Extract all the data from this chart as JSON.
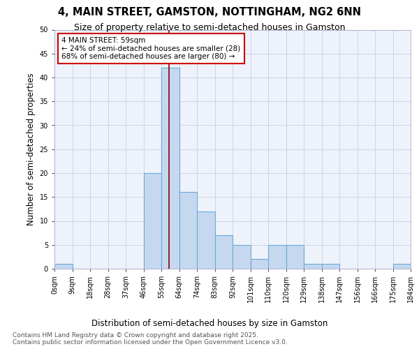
{
  "title": "4, MAIN STREET, GAMSTON, NOTTINGHAM, NG2 6NN",
  "subtitle": "Size of property relative to semi-detached houses in Gamston",
  "xlabel": "Distribution of semi-detached houses by size in Gamston",
  "ylabel": "Number of semi-detached properties",
  "bar_color": "#c5d8f0",
  "bar_edge_color": "#6aaad4",
  "background_color": "#eef2fb",
  "bar_heights": [
    1,
    0,
    0,
    0,
    0,
    20,
    42,
    16,
    12,
    7,
    5,
    2,
    5,
    5,
    1,
    1,
    0,
    0,
    0,
    1
  ],
  "bin_labels": [
    "0sqm",
    "9sqm",
    "18sqm",
    "28sqm",
    "37sqm",
    "46sqm",
    "55sqm",
    "64sqm",
    "74sqm",
    "83sqm",
    "92sqm",
    "101sqm",
    "110sqm",
    "120sqm",
    "129sqm",
    "138sqm",
    "147sqm",
    "156sqm",
    "166sqm",
    "175sqm",
    "184sqm"
  ],
  "vline_bin": 6,
  "annotation_title": "4 MAIN STREET: 59sqm",
  "annotation_line1": "← 24% of semi-detached houses are smaller (28)",
  "annotation_line2": "68% of semi-detached houses are larger (80) →",
  "annotation_box_color": "#ffffff",
  "annotation_box_edge": "#cc0000",
  "vline_color": "#8b0000",
  "ylim": [
    0,
    50
  ],
  "yticks": [
    0,
    5,
    10,
    15,
    20,
    25,
    30,
    35,
    40,
    45,
    50
  ],
  "footer_line1": "Contains HM Land Registry data © Crown copyright and database right 2025.",
  "footer_line2": "Contains public sector information licensed under the Open Government Licence v3.0.",
  "title_fontsize": 10.5,
  "subtitle_fontsize": 9,
  "axis_label_fontsize": 8.5,
  "tick_fontsize": 7,
  "annotation_fontsize": 7.5,
  "footer_fontsize": 6.5
}
